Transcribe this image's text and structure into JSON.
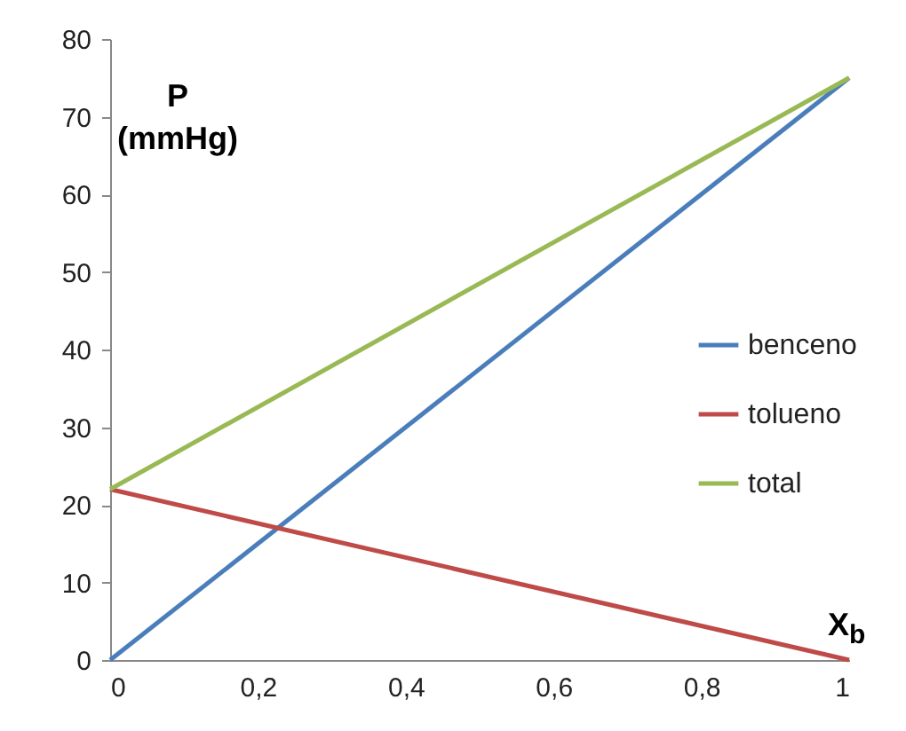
{
  "chart_data": {
    "type": "line",
    "xlabel": "X$_{b}$",
    "ylabel": "P (mmHg)",
    "x": [
      0,
      1
    ],
    "series": [
      {
        "name": "benceno",
        "color": "#4a7ebb",
        "values": [
          0,
          75
        ]
      },
      {
        "name": "tolueno",
        "color": "#be4b48",
        "values": [
          22,
          0
        ]
      },
      {
        "name": "total",
        "color": "#98b954",
        "values": [
          22,
          75
        ]
      }
    ],
    "xlim": [
      0,
      1
    ],
    "xticks": [
      0,
      {
        "value": 0.2,
        "label": "0,2"
      },
      {
        "value": 0.4,
        "label": "0,4"
      },
      {
        "value": 0.6,
        "label": "0,6"
      },
      {
        "value": 0.8,
        "label": "0,8"
      },
      1
    ],
    "ylim": [
      0,
      80
    ],
    "yticks": [
      0,
      10,
      20,
      30,
      40,
      50,
      60,
      70,
      80
    ],
    "grid": false,
    "legend": "right",
    "marker": "none",
    "line_style": "solid"
  }
}
